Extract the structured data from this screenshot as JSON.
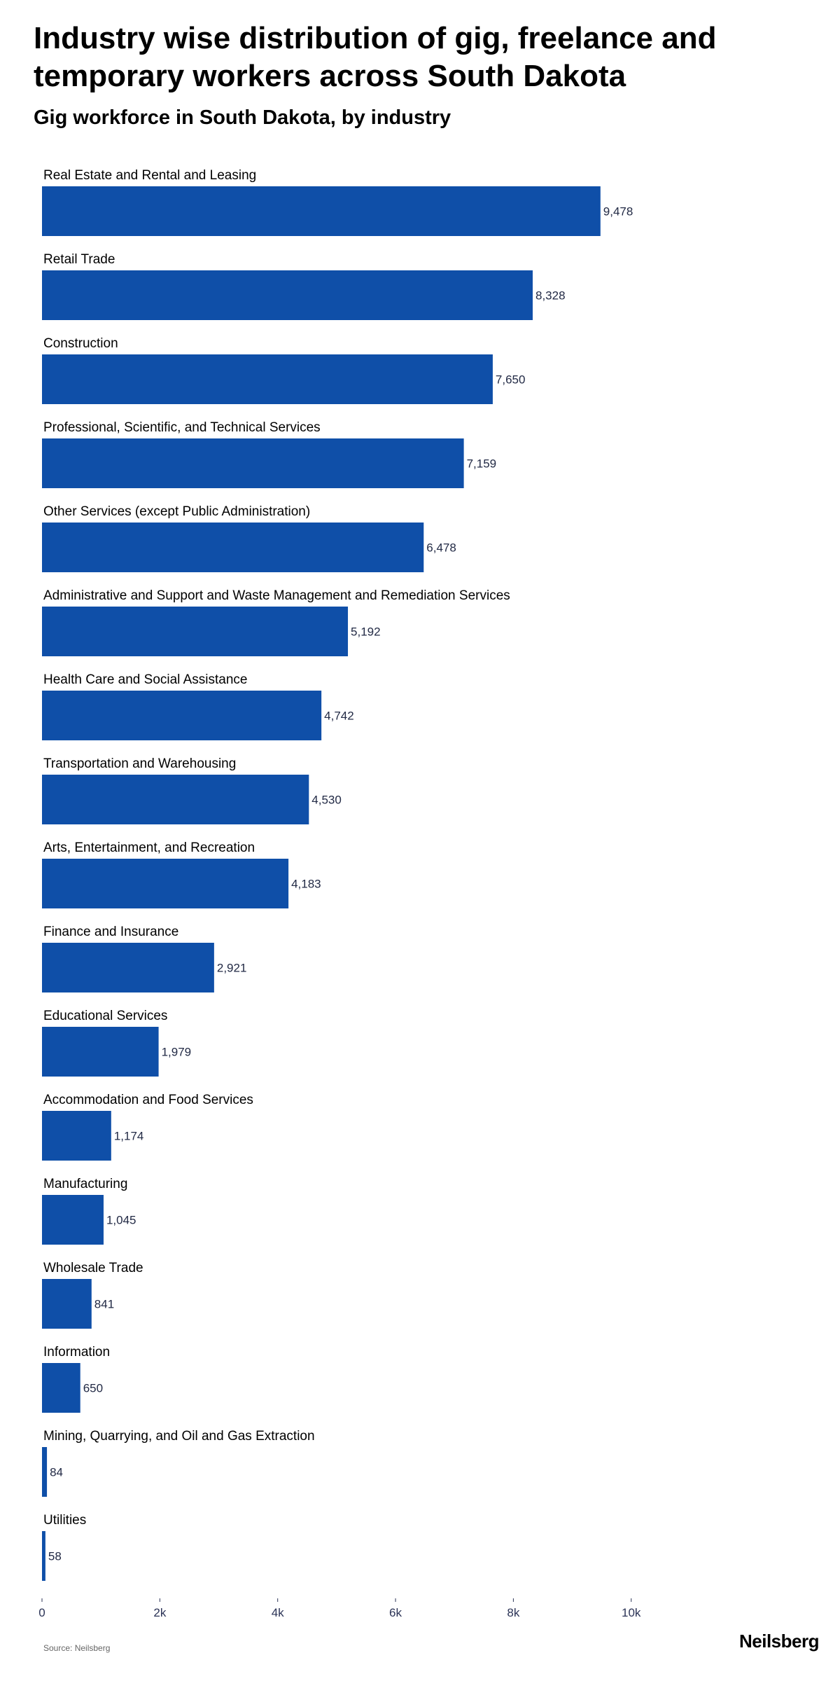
{
  "title": "Industry wise distribution of gig, freelance and temporary workers across South Dakota",
  "subtitle": "Gig workforce in South Dakota, by industry",
  "source": "Source: Neilsberg",
  "brand": "Neilsberg",
  "colors": {
    "bar": "#0f4fa8",
    "tick": "#2b3356"
  },
  "chart_data": {
    "type": "bar",
    "orientation": "horizontal",
    "categories": [
      "Real Estate and Rental and Leasing",
      "Retail Trade",
      "Construction",
      "Professional, Scientific, and Technical Services",
      "Other Services (except Public Administration)",
      "Administrative and Support and Waste Management and Remediation Services",
      "Health Care and Social Assistance",
      "Transportation and Warehousing",
      "Arts, Entertainment, and Recreation",
      "Finance and Insurance",
      "Educational Services",
      "Accommodation and Food Services",
      "Manufacturing",
      "Wholesale Trade",
      "Information",
      "Mining, Quarrying, and Oil and Gas Extraction",
      "Utilities"
    ],
    "values": [
      9478,
      8328,
      7650,
      7159,
      6478,
      5192,
      4742,
      4530,
      4183,
      2921,
      1979,
      1174,
      1045,
      841,
      650,
      84,
      58
    ],
    "value_labels": [
      "9,478",
      "8,328",
      "7,650",
      "7,159",
      "6,478",
      "5,192",
      "4,742",
      "4,530",
      "4,183",
      "2,921",
      "1,979",
      "1,174",
      "1,045",
      "841",
      "650",
      "84",
      "58"
    ],
    "xticks": [
      0,
      2000,
      4000,
      6000,
      8000,
      10000
    ],
    "xtick_labels": [
      "0",
      "2k",
      "4k",
      "6k",
      "8k",
      "10k"
    ],
    "xlim": [
      0,
      11500
    ],
    "grid": false,
    "legend": "none"
  }
}
